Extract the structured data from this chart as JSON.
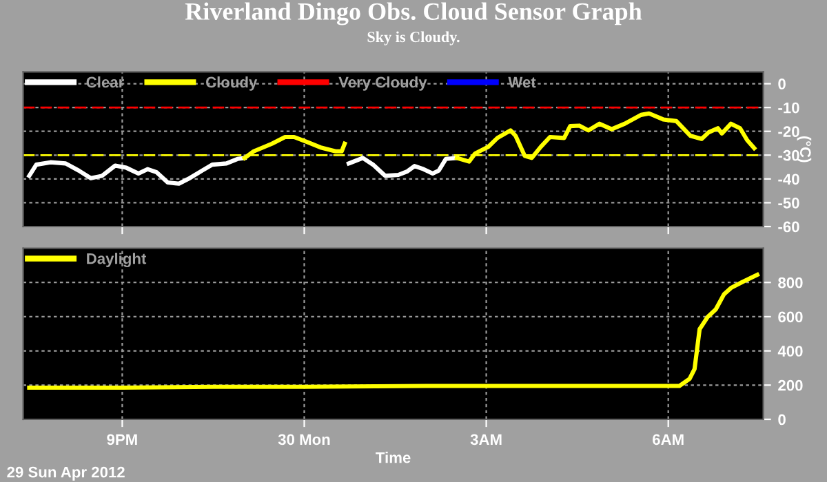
{
  "chart_data": [
    {
      "type": "line",
      "title": "Riverland Dingo Obs. Cloud Sensor Graph",
      "subtitle": "Sky is Cloudy.",
      "ylabel": "(°C)",
      "xlim": [
        "2012-04-29T19:22",
        "2012-04-30T07:34"
      ],
      "xticks": [
        {
          "value": "2012-04-29T21:00",
          "label": null
        },
        {
          "value": "2012-04-30T00:00",
          "label": null
        },
        {
          "value": "2012-04-30T03:00",
          "label": null
        },
        {
          "value": "2012-04-30T06:00",
          "label": null
        }
      ],
      "ylim": [
        -60,
        5
      ],
      "yticks": [
        -60,
        -50,
        -40,
        -30,
        -20,
        -10,
        0
      ],
      "tick_labels": "y",
      "grid": true,
      "legend": "top left",
      "line_style": "solid",
      "marker": "none",
      "ref_lines": [
        {
          "axis": "y",
          "value": -10,
          "color": "#ff0000",
          "line_style": "dashed"
        },
        {
          "axis": "y",
          "value": -30,
          "color": "#ffff00",
          "line_style": "dashed"
        }
      ],
      "series": [
        {
          "name": "Clear",
          "color": "#ffffff",
          "x": [
            "2012-04-29T19:28",
            "2012-04-29T19:35",
            "2012-04-29T19:49",
            "2012-04-29T20:04",
            "2012-04-29T20:17",
            "2012-04-29T20:29",
            "2012-04-29T20:40",
            "2012-04-29T20:53",
            "2012-04-29T21:04",
            "2012-04-29T21:16",
            "2012-04-29T21:25",
            "2012-04-29T21:34",
            "2012-04-29T21:45",
            "2012-04-29T21:56",
            "2012-04-29T22:07",
            "2012-04-29T22:19",
            "2012-04-29T22:29",
            "2012-04-29T22:43",
            "2012-04-29T22:54",
            "2012-04-29T23:01",
            "2012-04-30T00:40",
            "2012-04-30T00:44",
            "2012-04-30T00:58",
            "2012-04-30T01:08",
            "2012-04-30T01:20",
            "2012-04-30T01:33",
            "2012-04-30T01:42",
            "2012-04-30T01:49",
            "2012-04-30T01:58",
            "2012-04-30T02:07",
            "2012-04-30T02:13",
            "2012-04-30T02:20",
            "2012-04-30T02:31"
          ],
          "values": [
            -38.7,
            -34,
            -33,
            -33.5,
            -36.5,
            -39.7,
            -38.7,
            -34.4,
            -35.3,
            -37.7,
            -35.9,
            -37.2,
            -41.5,
            -42,
            -39.6,
            -36.5,
            -34,
            -33.5,
            -31.6,
            -31.2,
            null,
            -33.5,
            -31.2,
            -34,
            -38.7,
            -38.3,
            -36.8,
            -34.6,
            -35.9,
            -37.7,
            -36.5,
            -31.6,
            -31.2
          ]
        },
        {
          "name": "Cloudy",
          "color": "#ffff00",
          "x": [
            "2012-04-29T23:01",
            "2012-04-29T23:10",
            "2012-04-29T23:28",
            "2012-04-29T23:41",
            "2012-04-29T23:50",
            "2012-04-30T00:04",
            "2012-04-30T00:17",
            "2012-04-30T00:31",
            "2012-04-30T00:37",
            "2012-04-30T00:40",
            "2012-04-30T00:44",
            "2012-04-30T02:31",
            "2012-04-30T02:43",
            "2012-04-30T02:49",
            "2012-04-30T03:02",
            "2012-04-30T03:11",
            "2012-04-30T03:24",
            "2012-04-30T03:29",
            "2012-04-30T03:38",
            "2012-04-30T03:45",
            "2012-04-30T03:54",
            "2012-04-30T04:03",
            "2012-04-30T04:17",
            "2012-04-30T04:23",
            "2012-04-30T04:32",
            "2012-04-30T04:41",
            "2012-04-30T04:52",
            "2012-04-30T05:04",
            "2012-04-30T05:17",
            "2012-04-30T05:33",
            "2012-04-30T05:41",
            "2012-04-30T05:55",
            "2012-04-30T06:08",
            "2012-04-30T06:22",
            "2012-04-30T06:33",
            "2012-04-30T06:40",
            "2012-04-30T06:49",
            "2012-04-30T06:53",
            "2012-04-30T07:02",
            "2012-04-30T07:11",
            "2012-04-30T07:18",
            "2012-04-30T07:25"
          ],
          "values": [
            -31.2,
            -28.4,
            -25.2,
            -22.4,
            -22.4,
            -24.7,
            -26.9,
            -28.4,
            -28.4,
            -25.2,
            null,
            -31.2,
            -32.7,
            -29.3,
            -26.5,
            -22.8,
            -19.6,
            -21.9,
            -30.3,
            -31.2,
            -26.5,
            -22.4,
            -22.8,
            -17.8,
            -17.6,
            -19.6,
            -16.8,
            -19.1,
            -16.8,
            -13.1,
            -12.5,
            -15,
            -15.7,
            -21.9,
            -23.2,
            -20.4,
            -18.7,
            -20.9,
            -16.8,
            -18.7,
            -23.7,
            -27.1
          ]
        },
        {
          "name": "Very Cloudy",
          "color": "#ff0000"
        },
        {
          "name": "Wet",
          "color": "#0000ff"
        }
      ]
    },
    {
      "type": "line",
      "xlabel": "Time",
      "annotations": [
        "29 Sun Apr 2012"
      ],
      "xlim": [
        "2012-04-29T19:22",
        "2012-04-30T07:34"
      ],
      "xticks": [
        {
          "value": "2012-04-29T21:00",
          "label": "9PM"
        },
        {
          "value": "2012-04-30T00:00",
          "label": "30 Mon"
        },
        {
          "value": "2012-04-30T03:00",
          "label": "3AM"
        },
        {
          "value": "2012-04-30T06:00",
          "label": "6AM"
        }
      ],
      "ylim": [
        0,
        1000
      ],
      "yticks": [
        0,
        200,
        400,
        600,
        800
      ],
      "grid": true,
      "legend": "top left",
      "line_style": "solid",
      "marker": "none",
      "series": [
        {
          "name": "Daylight",
          "color": "#ffff00",
          "x": [
            "2012-04-29T19:28",
            "2012-04-29T21:00",
            "2012-04-29T22:30",
            "2012-04-30T00:00",
            "2012-04-30T02:00",
            "2012-04-30T04:00",
            "2012-04-30T06:00",
            "2012-04-30T06:11",
            "2012-04-30T06:21",
            "2012-04-30T06:26",
            "2012-04-30T06:31",
            "2012-04-30T06:39",
            "2012-04-30T06:47",
            "2012-04-30T06:55",
            "2012-04-30T07:02",
            "2012-04-30T07:13",
            "2012-04-30T07:28"
          ],
          "values": [
            185,
            185,
            190,
            190,
            195,
            195,
            195,
            195,
            236,
            294,
            527,
            599,
            643,
            730,
            768,
            802,
            845
          ]
        }
      ]
    }
  ]
}
